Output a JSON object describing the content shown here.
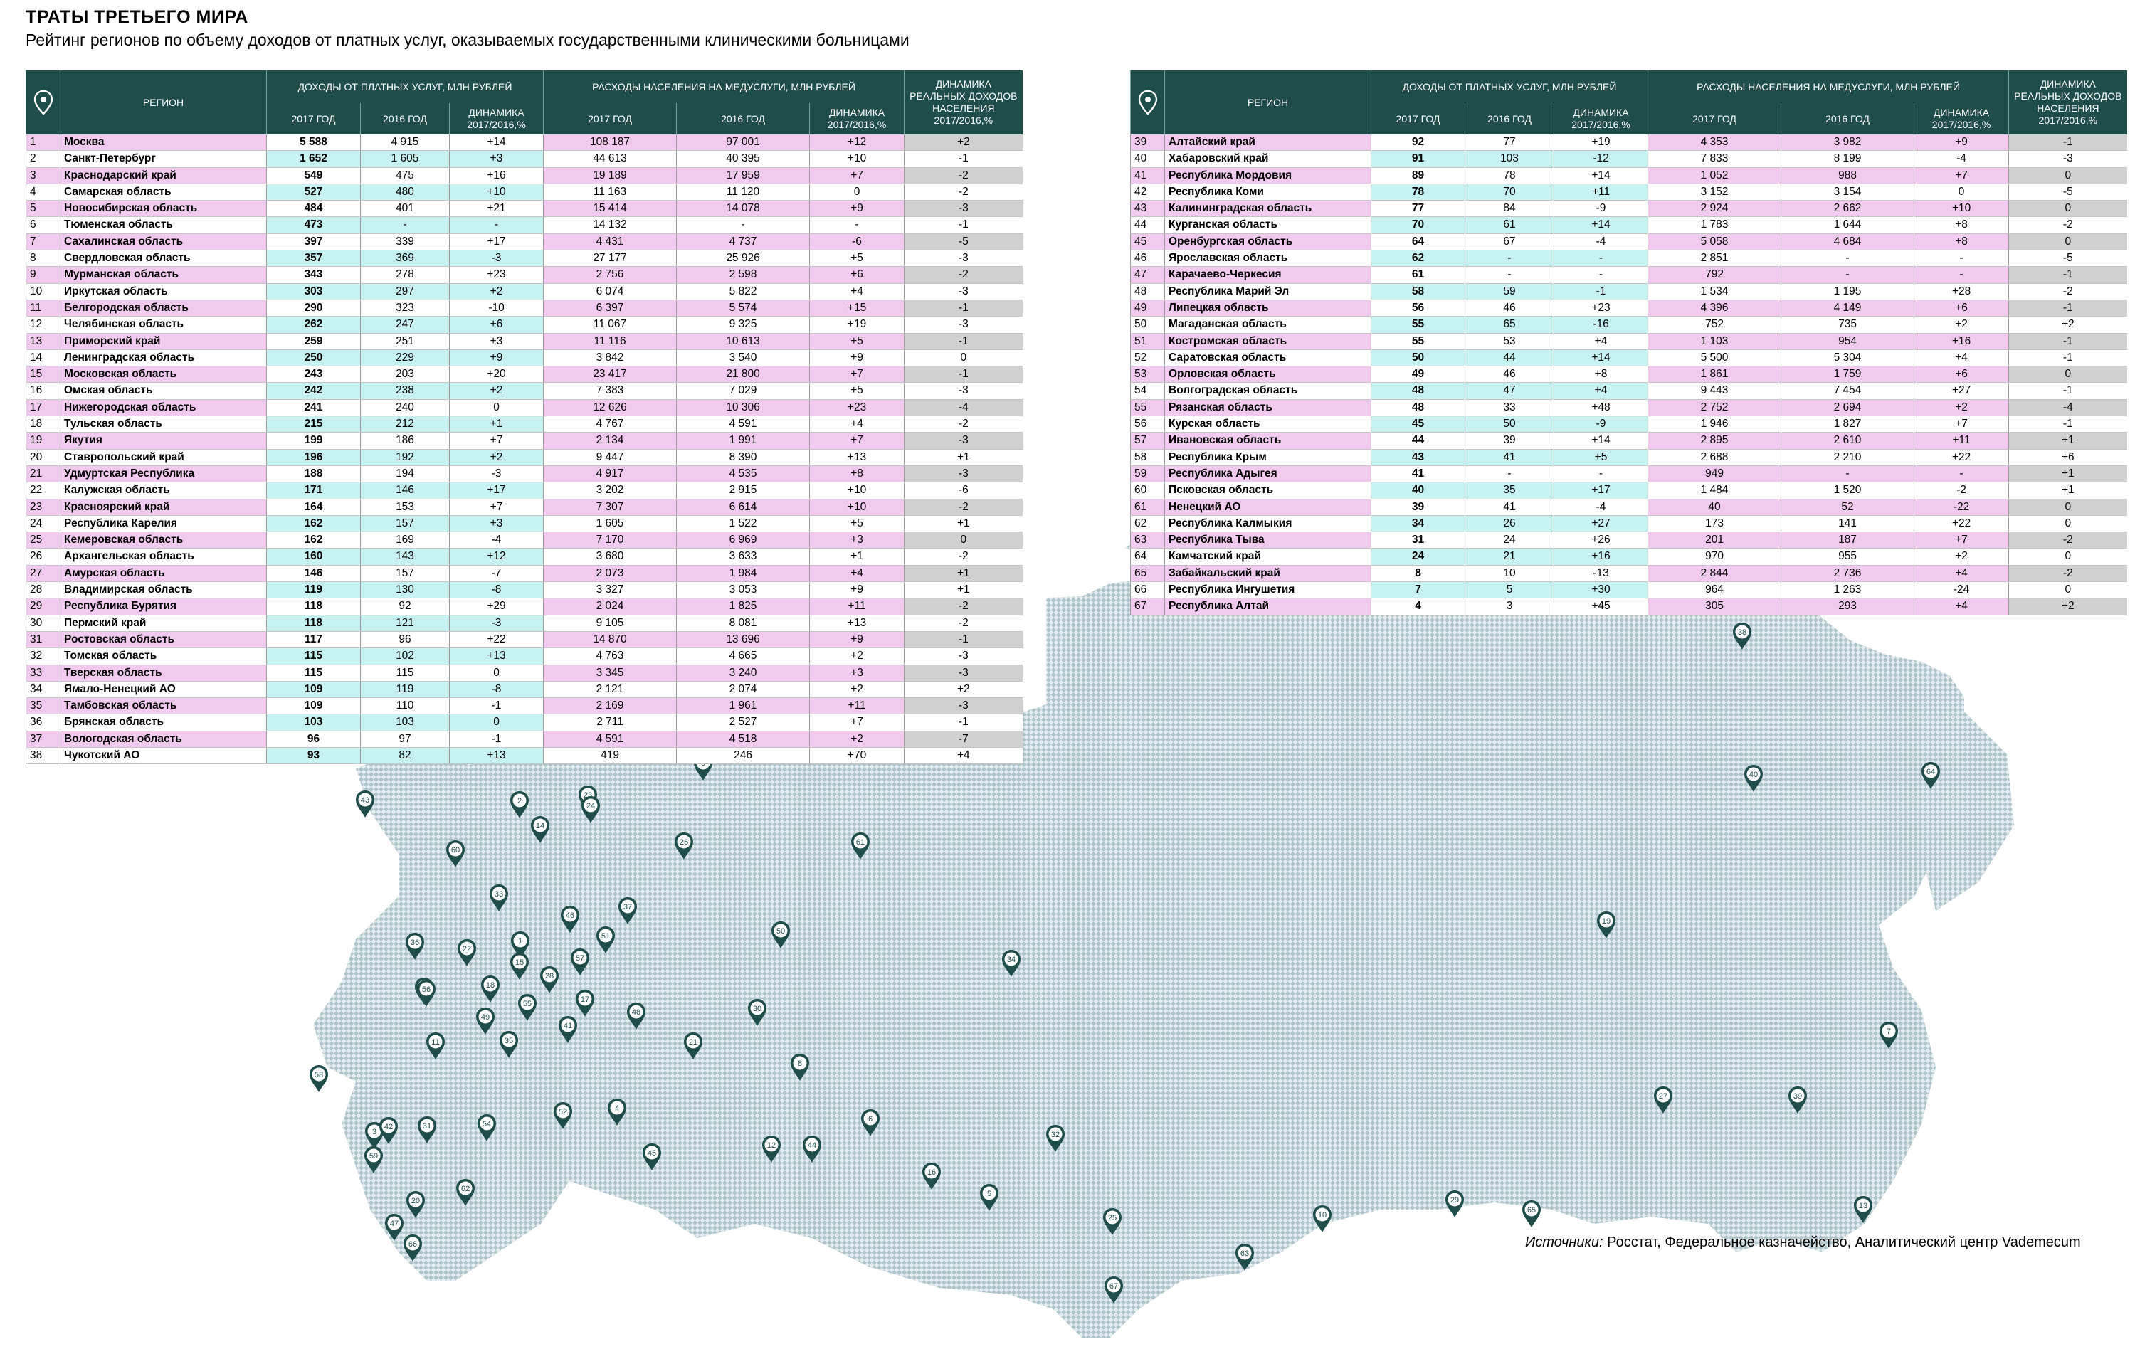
{
  "title": "ТРАТЫ ТРЕТЬЕГО МИРА",
  "subtitle": "Рейтинг регионов по объему доходов от платных услуг, оказываемых государственными клиническими больницами",
  "table": {
    "headers": {
      "region": "РЕГИОН",
      "income": "ДОХОДЫ ОТ ПЛАТНЫХ УСЛУГ, МЛН РУБЛЕЙ",
      "spending": "РАСХОДЫ НАСЕЛЕНИЯ НА МЕДУСЛУГИ, МЛН РУБЛЕЙ",
      "y2017": "2017 ГОД",
      "y2016": "2016 ГОД",
      "dyn": "ДИНАМИКА 2017/2016,%",
      "real_income": "ДИНАМИКА РЕАЛЬНЫХ ДОХОДОВ НАСЕЛЕНИЯ 2017/2016,%"
    },
    "colors": {
      "header_bg": "#1e4d4a",
      "cyan": "#c6f3f2",
      "pink": "#f2c9ef",
      "gray": "#d0d0d0",
      "map_pin": "#1e4d4a",
      "map_fill": "#b9cdd2"
    }
  },
  "chart_data": {
    "type": "table",
    "columns": [
      "rank",
      "region",
      "income_2017",
      "income_2016",
      "income_dynamics_pct",
      "spending_2017",
      "spending_2016",
      "spending_dynamics_pct",
      "real_income_dynamics_pct"
    ],
    "rows": [
      [
        "1",
        "Москва",
        "5 588",
        "4 915",
        "+14",
        "108 187",
        "97 001",
        "+12",
        "+2"
      ],
      [
        "2",
        "Санкт-Петербург",
        "1 652",
        "1 605",
        "+3",
        "44 613",
        "40 395",
        "+10",
        "-1"
      ],
      [
        "3",
        "Краснодарский край",
        "549",
        "475",
        "+16",
        "19 189",
        "17 959",
        "+7",
        "-2"
      ],
      [
        "4",
        "Самарская область",
        "527",
        "480",
        "+10",
        "11 163",
        "11 120",
        "0",
        "-2"
      ],
      [
        "5",
        "Новосибирская область",
        "484",
        "401",
        "+21",
        "15 414",
        "14 078",
        "+9",
        "-3"
      ],
      [
        "6",
        "Тюменская область",
        "473",
        "-",
        "-",
        "14 132",
        "-",
        "-",
        "-1"
      ],
      [
        "7",
        "Сахалинская область",
        "397",
        "339",
        "+17",
        "4 431",
        "4 737",
        "-6",
        "-5"
      ],
      [
        "8",
        "Свердловская область",
        "357",
        "369",
        "-3",
        "27 177",
        "25 926",
        "+5",
        "-3"
      ],
      [
        "9",
        "Мурманская область",
        "343",
        "278",
        "+23",
        "2 756",
        "2 598",
        "+6",
        "-2"
      ],
      [
        "10",
        "Иркутская область",
        "303",
        "297",
        "+2",
        "6 074",
        "5 822",
        "+4",
        "-3"
      ],
      [
        "11",
        "Белгородская область",
        "290",
        "323",
        "-10",
        "6 397",
        "5 574",
        "+15",
        "-1"
      ],
      [
        "12",
        "Челябинская область",
        "262",
        "247",
        "+6",
        "11 067",
        "9 325",
        "+19",
        "-3"
      ],
      [
        "13",
        "Приморский край",
        "259",
        "251",
        "+3",
        "11 116",
        "10 613",
        "+5",
        "-1"
      ],
      [
        "14",
        "Ленинградская область",
        "250",
        "229",
        "+9",
        "3 842",
        "3 540",
        "+9",
        "0"
      ],
      [
        "15",
        "Московская область",
        "243",
        "203",
        "+20",
        "23 417",
        "21 800",
        "+7",
        "-1"
      ],
      [
        "16",
        "Омская область",
        "242",
        "238",
        "+2",
        "7 383",
        "7 029",
        "+5",
        "-3"
      ],
      [
        "17",
        "Нижегородская область",
        "241",
        "240",
        "0",
        "12 626",
        "10 306",
        "+23",
        "-4"
      ],
      [
        "18",
        "Тульская область",
        "215",
        "212",
        "+1",
        "4 767",
        "4 591",
        "+4",
        "-2"
      ],
      [
        "19",
        "Якутия",
        "199",
        "186",
        "+7",
        "2 134",
        "1 991",
        "+7",
        "-3"
      ],
      [
        "20",
        "Ставропольский край",
        "196",
        "192",
        "+2",
        "9 447",
        "8 390",
        "+13",
        "+1"
      ],
      [
        "21",
        "Удмуртская Республика",
        "188",
        "194",
        "-3",
        "4 917",
        "4 535",
        "+8",
        "-3"
      ],
      [
        "22",
        "Калужская область",
        "171",
        "146",
        "+17",
        "3 202",
        "2 915",
        "+10",
        "-6"
      ],
      [
        "23",
        "Красноярский край",
        "164",
        "153",
        "+7",
        "7 307",
        "6 614",
        "+10",
        "-2"
      ],
      [
        "24",
        "Республика Карелия",
        "162",
        "157",
        "+3",
        "1 605",
        "1 522",
        "+5",
        "+1"
      ],
      [
        "25",
        "Кемеровская область",
        "162",
        "169",
        "-4",
        "7 170",
        "6 969",
        "+3",
        "0"
      ],
      [
        "26",
        "Архангельская область",
        "160",
        "143",
        "+12",
        "3 680",
        "3 633",
        "+1",
        "-2"
      ],
      [
        "27",
        "Амурская область",
        "146",
        "157",
        "-7",
        "2 073",
        "1 984",
        "+4",
        "+1"
      ],
      [
        "28",
        "Владимирская область",
        "119",
        "130",
        "-8",
        "3 327",
        "3 053",
        "+9",
        "+1"
      ],
      [
        "29",
        "Республика Бурятия",
        "118",
        "92",
        "+29",
        "2 024",
        "1 825",
        "+11",
        "-2"
      ],
      [
        "30",
        "Пермский край",
        "118",
        "121",
        "-3",
        "9 105",
        "8 081",
        "+13",
        "-2"
      ],
      [
        "31",
        "Ростовская область",
        "117",
        "96",
        "+22",
        "14 870",
        "13 696",
        "+9",
        "-1"
      ],
      [
        "32",
        "Томская область",
        "115",
        "102",
        "+13",
        "4 763",
        "4 665",
        "+2",
        "-3"
      ],
      [
        "33",
        "Тверская область",
        "115",
        "115",
        "0",
        "3 345",
        "3 240",
        "+3",
        "-3"
      ],
      [
        "34",
        "Ямало-Ненецкий АО",
        "109",
        "119",
        "-8",
        "2 121",
        "2 074",
        "+2",
        "+2"
      ],
      [
        "35",
        "Тамбовская область",
        "109",
        "110",
        "-1",
        "2 169",
        "1 961",
        "+11",
        "-3"
      ],
      [
        "36",
        "Брянская область",
        "103",
        "103",
        "0",
        "2 711",
        "2 527",
        "+7",
        "-1"
      ],
      [
        "37",
        "Вологодская область",
        "96",
        "97",
        "-1",
        "4 591",
        "4 518",
        "+2",
        "-7"
      ],
      [
        "38",
        "Чукотский АО",
        "93",
        "82",
        "+13",
        "419",
        "246",
        "+70",
        "+4"
      ],
      [
        "39",
        "Алтайский край",
        "92",
        "77",
        "+19",
        "4 353",
        "3 982",
        "+9",
        "-1"
      ],
      [
        "40",
        "Хабаровский край",
        "91",
        "103",
        "-12",
        "7 833",
        "8 199",
        "-4",
        "-3"
      ],
      [
        "41",
        "Республика Мордовия",
        "89",
        "78",
        "+14",
        "1 052",
        "988",
        "+7",
        "0"
      ],
      [
        "42",
        "Республика Коми",
        "78",
        "70",
        "+11",
        "3 152",
        "3 154",
        "0",
        "-5"
      ],
      [
        "43",
        "Калининградская область",
        "77",
        "84",
        "-9",
        "2 924",
        "2 662",
        "+10",
        "0"
      ],
      [
        "44",
        "Курганская область",
        "70",
        "61",
        "+14",
        "1 783",
        "1 644",
        "+8",
        "-2"
      ],
      [
        "45",
        "Оренбургская область",
        "64",
        "67",
        "-4",
        "5 058",
        "4 684",
        "+8",
        "0"
      ],
      [
        "46",
        "Ярославская область",
        "62",
        "-",
        "-",
        "2 851",
        "-",
        "-",
        "-5"
      ],
      [
        "47",
        "Карачаево-Черкесия",
        "61",
        "-",
        "-",
        "792",
        "-",
        "-",
        "-1"
      ],
      [
        "48",
        "Республика Марий Эл",
        "58",
        "59",
        "-1",
        "1 534",
        "1 195",
        "+28",
        "-2"
      ],
      [
        "49",
        "Липецкая область",
        "56",
        "46",
        "+23",
        "4 396",
        "4 149",
        "+6",
        "-1"
      ],
      [
        "50",
        "Магаданская область",
        "55",
        "65",
        "-16",
        "752",
        "735",
        "+2",
        "+2"
      ],
      [
        "51",
        "Костромская область",
        "55",
        "53",
        "+4",
        "1 103",
        "954",
        "+16",
        "-1"
      ],
      [
        "52",
        "Саратовская область",
        "50",
        "44",
        "+14",
        "5 500",
        "5 304",
        "+4",
        "-1"
      ],
      [
        "53",
        "Орловская область",
        "49",
        "46",
        "+8",
        "1 861",
        "1 759",
        "+6",
        "0"
      ],
      [
        "54",
        "Волгоградская область",
        "48",
        "47",
        "+4",
        "9 443",
        "7 454",
        "+27",
        "-1"
      ],
      [
        "55",
        "Рязанская область",
        "48",
        "33",
        "+48",
        "2 752",
        "2 694",
        "+2",
        "-4"
      ],
      [
        "56",
        "Курская область",
        "45",
        "50",
        "-9",
        "1 946",
        "1 827",
        "+7",
        "-1"
      ],
      [
        "57",
        "Ивановская область",
        "44",
        "39",
        "+14",
        "2 895",
        "2 610",
        "+11",
        "+1"
      ],
      [
        "58",
        "Республика Крым",
        "43",
        "41",
        "+5",
        "2 688",
        "2 210",
        "+22",
        "+6"
      ],
      [
        "59",
        "Республика Адыгея",
        "41",
        "-",
        "-",
        "949",
        "-",
        "-",
        "+1"
      ],
      [
        "60",
        "Псковская область",
        "40",
        "35",
        "+17",
        "1 484",
        "1 520",
        "-2",
        "+1"
      ],
      [
        "61",
        "Ненецкий АО",
        "39",
        "41",
        "-4",
        "40",
        "52",
        "-22",
        "0"
      ],
      [
        "62",
        "Республика Калмыкия",
        "34",
        "26",
        "+27",
        "173",
        "141",
        "+22",
        "0"
      ],
      [
        "63",
        "Республика Тыва",
        "31",
        "24",
        "+26",
        "201",
        "187",
        "+7",
        "-2"
      ],
      [
        "64",
        "Камчатский край",
        "24",
        "21",
        "+16",
        "970",
        "955",
        "+2",
        "0"
      ],
      [
        "65",
        "Забайкальский край",
        "8",
        "10",
        "-13",
        "2 844",
        "2 736",
        "+4",
        "-2"
      ],
      [
        "66",
        "Республика Ингушетия",
        "7",
        "5",
        "+30",
        "964",
        "1 263",
        "-24",
        "0"
      ],
      [
        "67",
        "Республика Алтай",
        "4",
        "3",
        "+45",
        "305",
        "293",
        "+4",
        "+2"
      ]
    ]
  },
  "map_pins": [
    "1",
    "2",
    "3",
    "4",
    "5",
    "6",
    "7",
    "8",
    "9",
    "10",
    "11",
    "12",
    "13",
    "14",
    "15",
    "16",
    "17",
    "18",
    "19",
    "20",
    "21",
    "22",
    "23",
    "24",
    "25",
    "26",
    "27",
    "28",
    "29",
    "30",
    "31",
    "32",
    "33",
    "34",
    "35",
    "36",
    "37",
    "38",
    "39",
    "40",
    "41",
    "42",
    "43",
    "44",
    "45",
    "46",
    "47",
    "48",
    "49",
    "50",
    "51",
    "52",
    "53",
    "54",
    "55",
    "56",
    "57",
    "58",
    "59",
    "60",
    "61",
    "62",
    "63",
    "64",
    "65",
    "66",
    "67"
  ],
  "source": {
    "label": "Источники:",
    "text": " Росстат, Федеральное казначейство, Аналитический центр Vademecum"
  }
}
